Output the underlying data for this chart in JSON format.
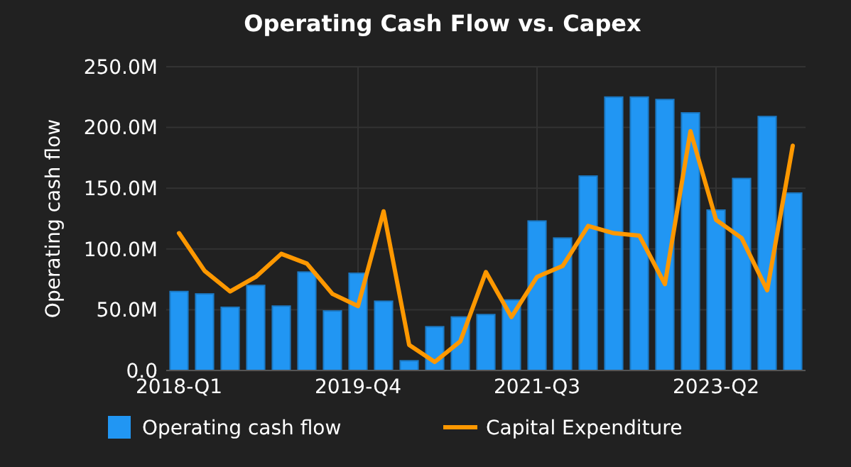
{
  "chart_data": {
    "type": "bar",
    "title": "Operating Cash Flow vs. Capex",
    "ylabel": "Operating cash flow",
    "categories": [
      "2018-Q1",
      null,
      null,
      null,
      null,
      null,
      null,
      "2019-Q4",
      null,
      null,
      null,
      null,
      null,
      null,
      "2021-Q3",
      null,
      null,
      null,
      null,
      null,
      null,
      "2023-Q2",
      null,
      null,
      null
    ],
    "series": [
      {
        "name": "Operating cash flow",
        "color": "#2196f3",
        "values": [
          65,
          63,
          52,
          70,
          53,
          81,
          49,
          80,
          57,
          8,
          36,
          44,
          46,
          58,
          123,
          109,
          160,
          225,
          225,
          223,
          212,
          132,
          158,
          209,
          146
        ]
      },
      {
        "name": "Capital Expenditure",
        "type": "line",
        "color": "#ff9800",
        "values": [
          113,
          82,
          65,
          77,
          96,
          88,
          63,
          53,
          131,
          21,
          7,
          24,
          81,
          44,
          77,
          86,
          119,
          113,
          111,
          71,
          197,
          124,
          109,
          66,
          185
        ]
      }
    ],
    "ylim": [
      0,
      250
    ],
    "yticks": [
      {
        "value": 0,
        "label": "0.0"
      },
      {
        "value": 50,
        "label": "50.0M"
      },
      {
        "value": 100,
        "label": "100.0M"
      },
      {
        "value": 150,
        "label": "150.0M"
      },
      {
        "value": 200,
        "label": "200.0M"
      },
      {
        "value": 250,
        "label": "250.0M"
      }
    ],
    "grid": true,
    "legend": "bottom",
    "marker": "none",
    "line_style": "solid"
  }
}
